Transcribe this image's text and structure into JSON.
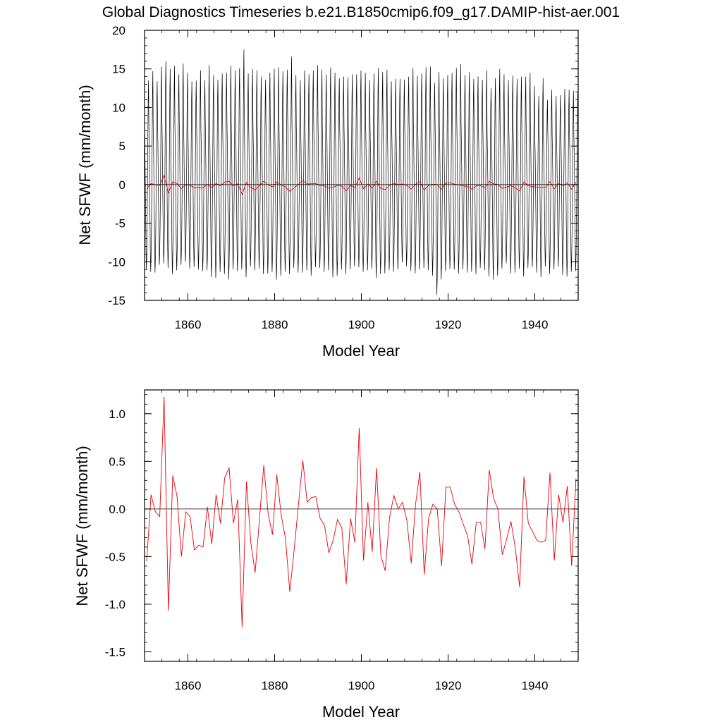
{
  "figure_title": "Global Diagnostics Timeseries b.e21.B1850cmip6.f09_g17.DAMIP-hist-aer.001",
  "colors": {
    "monthly": "#000000",
    "annual": "#e8000b",
    "zero_line": "#000000",
    "axes": "#000000",
    "background": "#ffffff"
  },
  "chart_data": [
    {
      "type": "line",
      "title": "",
      "xlabel": "Model Year",
      "ylabel": "Net SFWF (mm/month)",
      "xlim": [
        1850,
        1950
      ],
      "ylim": [
        -15,
        20
      ],
      "xticks": [
        1860,
        1880,
        1900,
        1920,
        1940
      ],
      "xtick_labels": [
        "1860",
        "1880",
        "1900",
        "1920",
        "1940"
      ],
      "yticks": [
        -15,
        -10,
        -5,
        0,
        5,
        10,
        15,
        20
      ],
      "ytick_labels": [
        "-15",
        "-10",
        "-5",
        "0",
        "5",
        "10",
        "15",
        "20"
      ],
      "grid": false,
      "legend": "none",
      "reference_line": 0,
      "series": [
        {
          "style": "monthly-black",
          "x_start": 1850,
          "x_step": 0.083333,
          "annual_max": [
            13.5,
            14.7,
            13.4,
            15.3,
            16.0,
            15.0,
            15.4,
            14.3,
            15.7,
            14.5,
            13.4,
            13.5,
            14.8,
            13.5,
            15.5,
            14.2,
            13.6,
            14.4,
            14.5,
            15.4,
            14.8,
            15.1,
            17.5,
            14.4,
            15.0,
            14.8,
            14.0,
            13.6,
            14.5,
            15.0,
            15.2,
            14.7,
            14.9,
            16.6,
            14.2,
            13.5,
            14.8,
            14.3,
            14.8,
            15.5,
            14.9,
            14.3,
            15.2,
            14.5,
            13.8,
            14.0,
            13.9,
            14.3,
            14.3,
            14.8,
            14.5,
            13.5,
            14.4,
            15.1,
            14.6,
            14.9,
            13.4,
            13.7,
            13.7,
            13.6,
            14.0,
            15.1,
            14.1,
            14.4,
            15.2,
            15.3,
            13.2,
            14.6,
            13.8,
            14.2,
            14.5,
            15.1,
            15.6,
            14.2,
            14.6,
            13.7,
            14.0,
            13.6,
            14.8,
            12.5,
            13.8,
            15.0,
            14.3,
            13.5,
            14.1,
            13.7,
            14.0,
            14.0,
            14.5,
            12.8,
            11.5,
            13.8,
            11.0,
            12.3,
            11.5,
            11.6,
            12.4,
            12.3,
            12.2,
            12.0
          ],
          "annual_min": [
            -11.0,
            -11.3,
            -11.4,
            -10.4,
            -10.2,
            -10.8,
            -11.6,
            -11.1,
            -10.4,
            -10.0,
            -10.9,
            -10.7,
            -11.0,
            -11.2,
            -11.1,
            -12.0,
            -12.1,
            -11.3,
            -11.6,
            -12.3,
            -11.0,
            -11.2,
            -11.0,
            -12.0,
            -10.6,
            -11.1,
            -10.9,
            -11.6,
            -11.5,
            -11.3,
            -12.3,
            -11.8,
            -11.3,
            -11.6,
            -10.8,
            -11.4,
            -11.4,
            -11.1,
            -11.8,
            -10.7,
            -10.8,
            -11.3,
            -11.1,
            -12.0,
            -11.8,
            -11.0,
            -11.6,
            -11.0,
            -10.6,
            -10.7,
            -11.3,
            -11.1,
            -10.9,
            -12.1,
            -11.6,
            -11.5,
            -11.1,
            -11.3,
            -11.0,
            -10.1,
            -10.6,
            -11.2,
            -11.5,
            -11.0,
            -10.8,
            -11.1,
            -11.8,
            -14.3,
            -12.3,
            -11.2,
            -10.9,
            -11.0,
            -11.5,
            -11.0,
            -11.4,
            -11.3,
            -11.6,
            -10.8,
            -11.1,
            -11.9,
            -12.3,
            -11.8,
            -10.9,
            -10.2,
            -11.5,
            -11.4,
            -10.9,
            -11.9,
            -10.8,
            -10.7,
            -11.4,
            -12.0,
            -10.6,
            -11.6,
            -11.0,
            -10.6,
            -11.7,
            -11.9,
            -11.3,
            -11.2
          ]
        },
        {
          "style": "annual-red",
          "x_start": 1850.5,
          "x_step": 1,
          "values_ref": "annual_mean"
        }
      ]
    },
    {
      "type": "line",
      "title": "",
      "xlabel": "Model Year",
      "ylabel": "Net SFWF (mm/month)",
      "xlim": [
        1850,
        1950
      ],
      "ylim": [
        -1.6,
        1.25
      ],
      "xticks": [
        1860,
        1880,
        1900,
        1920,
        1940
      ],
      "xtick_labels": [
        "1860",
        "1880",
        "1900",
        "1920",
        "1940"
      ],
      "yticks": [
        -1.5,
        -1.0,
        -0.5,
        0.0,
        0.5,
        1.0
      ],
      "ytick_labels": [
        "-1.5",
        "-1.0",
        "-0.5",
        "0.0",
        "0.5",
        "1.0"
      ],
      "grid": false,
      "legend": "none",
      "reference_line": 0,
      "series": [
        {
          "style": "annual-red",
          "x_start": 1850.5,
          "x_step": 1,
          "values": [
            -0.55,
            0.15,
            -0.03,
            -0.08,
            1.18,
            -1.07,
            0.35,
            0.13,
            -0.5,
            -0.03,
            -0.08,
            -0.43,
            -0.38,
            -0.4,
            0.02,
            -0.37,
            0.15,
            -0.15,
            0.33,
            0.43,
            -0.15,
            0.1,
            -1.24,
            0.29,
            -0.35,
            -0.67,
            -0.11,
            0.46,
            -0.05,
            -0.27,
            0.36,
            -0.06,
            -0.31,
            -0.87,
            -0.43,
            0.05,
            0.51,
            0.07,
            0.12,
            0.13,
            -0.1,
            -0.17,
            -0.46,
            -0.33,
            -0.11,
            -0.2,
            -0.79,
            -0.1,
            -0.35,
            0.85,
            -0.54,
            0.07,
            -0.45,
            0.43,
            -0.49,
            -0.65,
            -0.09,
            0.14,
            0.0,
            0.07,
            -0.12,
            -0.57,
            0.05,
            0.39,
            -0.69,
            -0.1,
            0.05,
            0.0,
            -0.6,
            0.23,
            0.23,
            0.05,
            -0.03,
            -0.16,
            -0.28,
            -0.58,
            -0.14,
            -0.14,
            -0.42,
            0.41,
            0.11,
            0.0,
            -0.48,
            -0.32,
            -0.13,
            -0.41,
            -0.82,
            0.34,
            -0.15,
            -0.24,
            -0.33,
            -0.35,
            -0.33,
            0.38,
            -0.54,
            0.15,
            -0.14,
            0.24,
            -0.6,
            0.32
          ]
        }
      ]
    }
  ]
}
